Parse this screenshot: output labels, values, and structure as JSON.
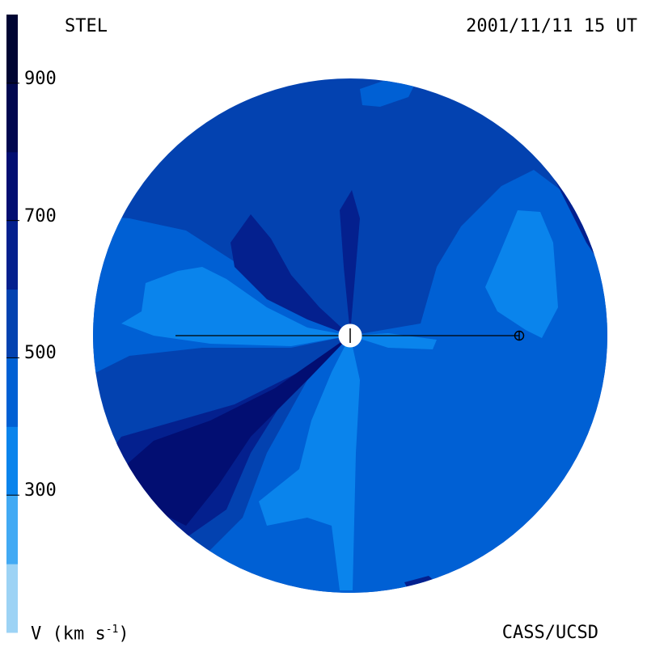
{
  "header": {
    "left_label": "STEL",
    "right_label": "2001/11/11 15 UT"
  },
  "footer": {
    "left_label_main": "V (km s",
    "left_label_sup": "-1",
    "left_label_end": ")",
    "right_label": "CASS/UCSD"
  },
  "colorbar": {
    "tick_labels": [
      "900",
      "700",
      "500",
      "300"
    ],
    "tick_values": [
      900,
      700,
      500,
      300
    ],
    "range": [
      100,
      1000
    ],
    "bands": [
      {
        "from": 100,
        "to": 200,
        "color": "#9dd3f5"
      },
      {
        "from": 200,
        "to": 300,
        "color": "#42aaf4"
      },
      {
        "from": 300,
        "to": 400,
        "color": "#0a84ec"
      },
      {
        "from": 400,
        "to": 500,
        "color": "#0060d4"
      },
      {
        "from": 500,
        "to": 600,
        "color": "#0342b0"
      },
      {
        "from": 600,
        "to": 700,
        "color": "#04208e"
      },
      {
        "from": 700,
        "to": 800,
        "color": "#020e72"
      },
      {
        "from": 800,
        "to": 900,
        "color": "#010850"
      },
      {
        "from": 900,
        "to": 1000,
        "color": "#000533"
      }
    ]
  },
  "map_colors": {
    "v300": "#0a84ec",
    "v400": "#0060d4",
    "v500": "#0342b0",
    "v600": "#04208e",
    "v700": "#020e72",
    "v200": "#42aaf4"
  }
}
